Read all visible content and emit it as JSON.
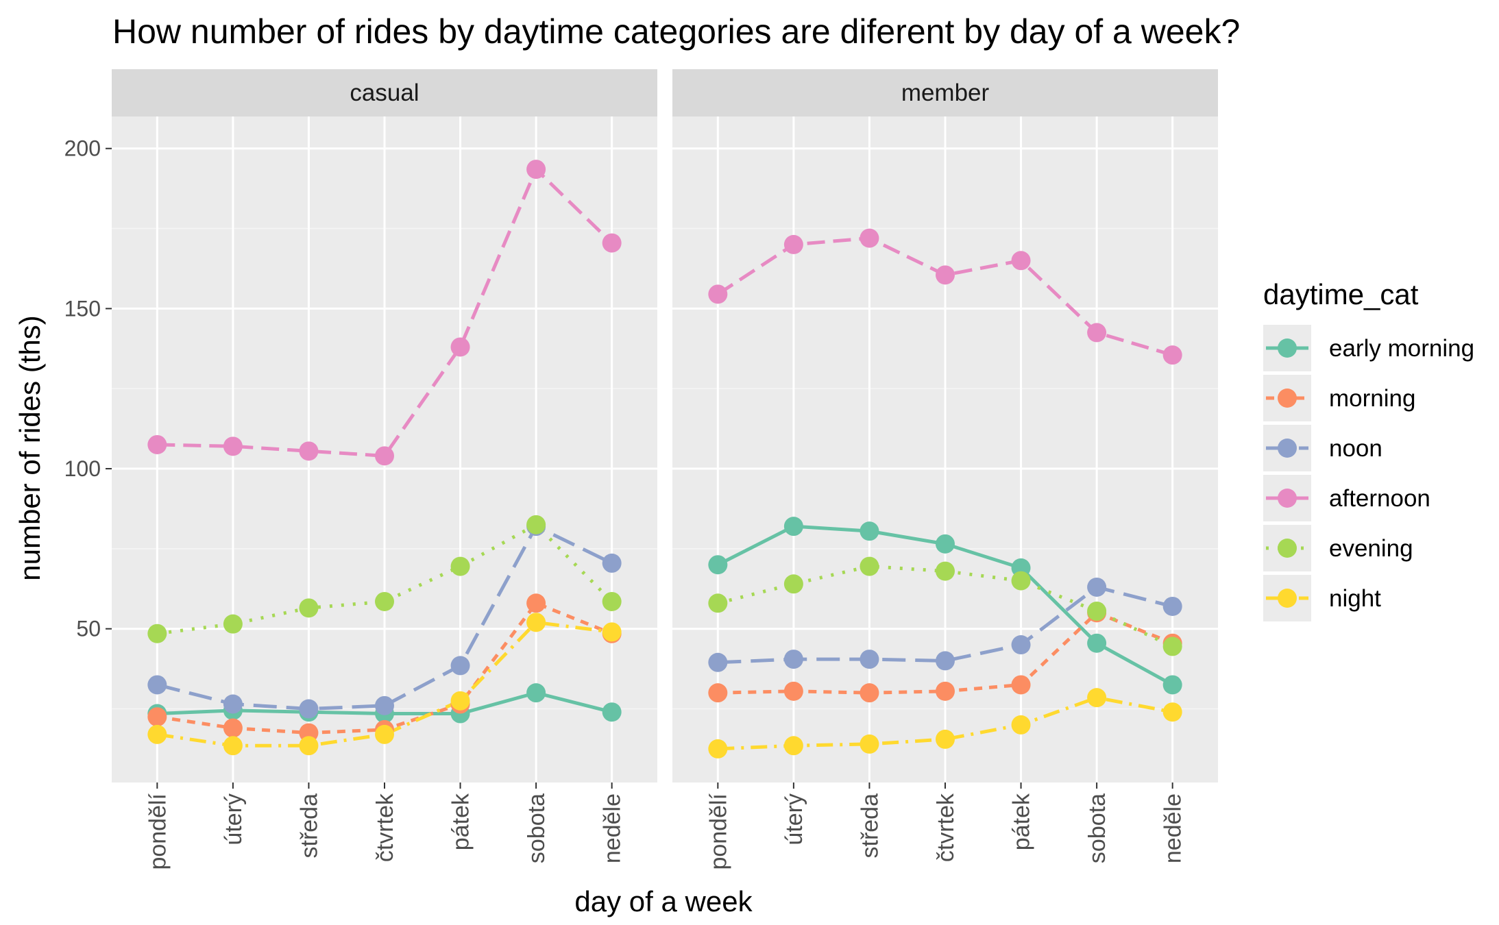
{
  "chart_data": {
    "type": "line",
    "title": "How number of rides by daytime categories are diferent by day of a week?",
    "xlabel": "day of a week",
    "ylabel": "number of rides (ths)",
    "ylim": [
      2,
      210
    ],
    "yticks": [
      50,
      100,
      150,
      200
    ],
    "grid": true,
    "legend": {
      "title": "daytime_cat",
      "position": "right"
    },
    "categories": [
      "pondělí",
      "úterý",
      "středa",
      "čtvrtek",
      "pátek",
      "sobota",
      "neděle"
    ],
    "panels": [
      {
        "name": "casual",
        "series": [
          {
            "name": "early morning",
            "color": "#66C2A5",
            "dash": "solid",
            "values": [
              23.5,
              24.5,
              24,
              23.5,
              23.5,
              30,
              24
            ]
          },
          {
            "name": "morning",
            "color": "#FC8D62",
            "dash": "dashed-short",
            "values": [
              22.5,
              19,
              17.5,
              18.5,
              26.5,
              58,
              48.5
            ]
          },
          {
            "name": "noon",
            "color": "#8DA0CB",
            "dash": "dashed-long",
            "values": [
              32.5,
              26.5,
              25,
              26,
              38.5,
              82,
              70.5
            ]
          },
          {
            "name": "afternoon",
            "color": "#E78AC3",
            "dash": "dashed",
            "values": [
              107.5,
              107,
              105.5,
              104,
              138,
              193.5,
              170.5
            ]
          },
          {
            "name": "evening",
            "color": "#A6D854",
            "dash": "dotted",
            "values": [
              48.5,
              51.5,
              56.5,
              58.5,
              69.5,
              82.5,
              58.5
            ]
          },
          {
            "name": "night",
            "color": "#FFD92F",
            "dash": "dashdot",
            "values": [
              17,
              13.5,
              13.5,
              17,
              27.5,
              52,
              49
            ]
          }
        ]
      },
      {
        "name": "member",
        "series": [
          {
            "name": "early morning",
            "color": "#66C2A5",
            "dash": "solid",
            "values": [
              70,
              82,
              80.5,
              76.5,
              69,
              45.5,
              32.5
            ]
          },
          {
            "name": "morning",
            "color": "#FC8D62",
            "dash": "dashed-short",
            "values": [
              30,
              30.5,
              30,
              30.5,
              32.5,
              55,
              45.5
            ]
          },
          {
            "name": "noon",
            "color": "#8DA0CB",
            "dash": "dashed-long",
            "values": [
              39.5,
              40.5,
              40.5,
              40,
              45,
              63,
              57
            ]
          },
          {
            "name": "afternoon",
            "color": "#E78AC3",
            "dash": "dashed",
            "values": [
              154.5,
              170,
              172,
              160.5,
              165,
              142.5,
              135.5
            ]
          },
          {
            "name": "evening",
            "color": "#A6D854",
            "dash": "dotted",
            "values": [
              58,
              64,
              69.5,
              68,
              65,
              55.5,
              44.5
            ]
          },
          {
            "name": "night",
            "color": "#FFD92F",
            "dash": "dashdot",
            "values": [
              12.5,
              13.5,
              14,
              15.5,
              20,
              28.5,
              24
            ]
          }
        ]
      }
    ]
  }
}
